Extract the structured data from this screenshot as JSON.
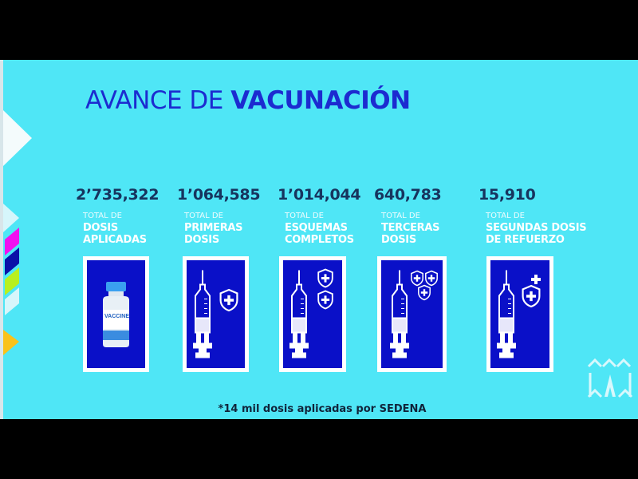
{
  "title": {
    "light": "AVANCE DE",
    "bold": "VACUNACIÓN"
  },
  "stats": [
    {
      "value": "2’735,322",
      "prefix": "TOTAL DE",
      "line1": "DOSIS",
      "line2": "APLICADAS",
      "icon": "vaccine-vial-icon"
    },
    {
      "value": "1’064,585",
      "prefix": "TOTAL DE",
      "line1": "PRIMERAS",
      "line2": "DOSIS",
      "icon": "syringe-shield-icon"
    },
    {
      "value": "1’014,044",
      "prefix": "TOTAL DE",
      "line1": "ESQUEMAS",
      "line2": "COMPLETOS",
      "icon": "syringe-two-shields-icon"
    },
    {
      "value": "640,783",
      "prefix": "TOTAL DE",
      "line1": "TERCERAS",
      "line2": "DOSIS",
      "icon": "syringe-three-shields-icon"
    },
    {
      "value": "15,910",
      "prefix": "TOTAL DE",
      "line1": "SEGUNDAS DOSIS",
      "line2": "DE REFUERZO",
      "icon": "syringe-shield-plus-icon"
    }
  ],
  "vial_label": "VACCINE",
  "footer": "*14 mil dosis aplicadas por SEDENA",
  "colors": {
    "background": "#4fe6f6",
    "title": "#1c2bd0",
    "card": "#0a10c8",
    "number": "#17345e"
  }
}
